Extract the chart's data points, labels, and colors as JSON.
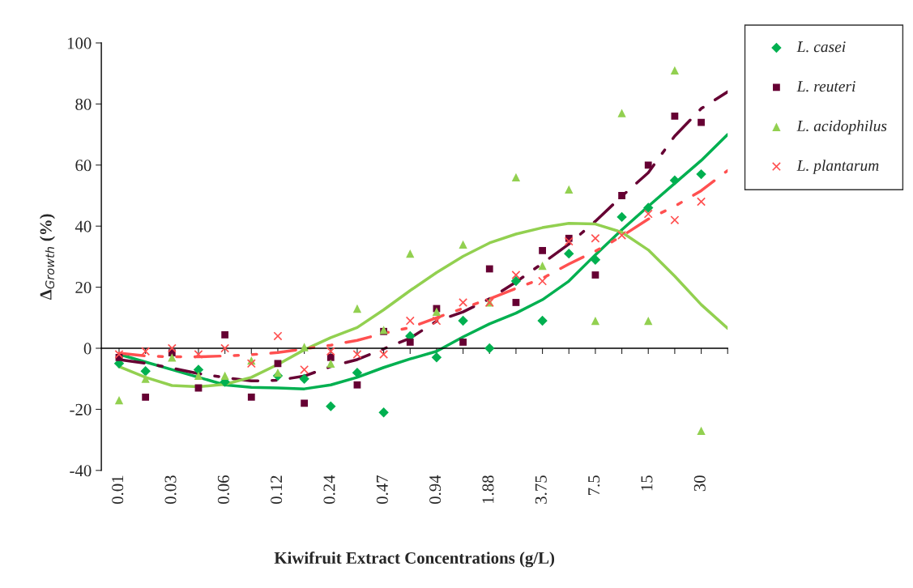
{
  "chart_data": {
    "type": "scatter",
    "xlabel": "Kiwifruit Extract Concentrations (g/L)",
    "ylabel": "Δ$_{Growth}$ (%)",
    "categories": [
      "0.01",
      null,
      "0.03",
      null,
      "0.06",
      null,
      "0.12",
      null,
      "0.24",
      null,
      "0.47",
      null,
      "0.94",
      null,
      "1.88",
      null,
      "3.75",
      null,
      "7.5",
      null,
      "15",
      null,
      "30",
      null
    ],
    "ylim": [
      -40,
      100
    ],
    "yticks": [
      -40,
      -20,
      0,
      20,
      40,
      60,
      80,
      100
    ],
    "legend": "top right",
    "series": [
      {
        "name": "L. casei",
        "color": "#00b050",
        "marker": "diamond",
        "values": [
          -5,
          -7.5,
          null,
          -7,
          -11,
          null,
          -9,
          -10,
          -19,
          -8,
          -21,
          4,
          -3,
          9,
          0,
          22,
          9,
          31,
          29,
          43,
          46,
          55,
          57,
          null
        ]
      },
      {
        "name": "L. reuteri",
        "color": "#660033",
        "marker": "square",
        "values": [
          -3,
          -16,
          -1.5,
          -13,
          4.4,
          -16,
          -5,
          -18,
          -3,
          -12,
          5.5,
          2,
          13,
          2,
          26,
          15,
          32,
          36,
          24,
          50,
          60,
          76,
          74,
          null
        ]
      },
      {
        "name": "L. acidophilus",
        "color": "#92d050",
        "marker": "triangle",
        "values": [
          -17,
          -10,
          -3,
          -9,
          -9,
          -4,
          -8,
          0.4,
          -5,
          13,
          6,
          31,
          12,
          34,
          15,
          56,
          27,
          52,
          9,
          77,
          9,
          91,
          -27,
          null
        ]
      },
      {
        "name": "L. plantarum",
        "color": "#ff5050",
        "marker": "cross",
        "values": [
          -2,
          -1,
          0,
          -2,
          0,
          -5,
          4,
          -7,
          -1,
          -2,
          -2,
          9,
          9,
          15,
          15,
          24,
          22,
          35,
          36,
          37,
          44,
          42,
          48,
          null
        ]
      },
      {
        "type": "line",
        "color": "#00b050",
        "line_style": "solid",
        "values": [
          -2,
          -4.5,
          -7,
          -9.5,
          -12,
          -12.8,
          -13,
          -13.3,
          -12,
          -9.5,
          -6.3,
          -3.5,
          -1,
          3.7,
          8,
          11.5,
          15.9,
          22,
          30.6,
          38.8,
          46.5,
          54,
          61.5,
          70
        ]
      },
      {
        "type": "line",
        "color": "#660033",
        "line_style": "dashdot",
        "values": [
          -3.7,
          -4.9,
          -6.5,
          -8.3,
          -9.6,
          -10.7,
          -10.5,
          -9.1,
          -6,
          -3.7,
          -0.2,
          3.3,
          8.9,
          11.9,
          16.2,
          21.7,
          27.8,
          34.1,
          41.6,
          49.8,
          57.5,
          69.5,
          78.5,
          84
        ]
      },
      {
        "type": "line",
        "color": "#92d050",
        "line_style": "solid",
        "values": [
          -6,
          -9.5,
          -12.2,
          -12.6,
          -11.8,
          -9.5,
          -5.3,
          -0.5,
          3.5,
          6.8,
          12.6,
          18.9,
          24.8,
          30.1,
          34.5,
          37.4,
          39.5,
          40.9,
          40.7,
          38,
          32.2,
          23.6,
          14.3,
          6.5
        ]
      },
      {
        "type": "line",
        "color": "#ff5050",
        "line_style": "dashdotdot",
        "values": [
          -1.6,
          -2.5,
          -2.8,
          -2.8,
          -2.5,
          -2.1,
          -1.4,
          -0.2,
          1,
          2.6,
          4.9,
          6.8,
          10,
          13.1,
          16.2,
          19.6,
          22.9,
          27.6,
          31.8,
          36.7,
          42.3,
          46.5,
          51.6,
          58.2
        ]
      }
    ]
  }
}
